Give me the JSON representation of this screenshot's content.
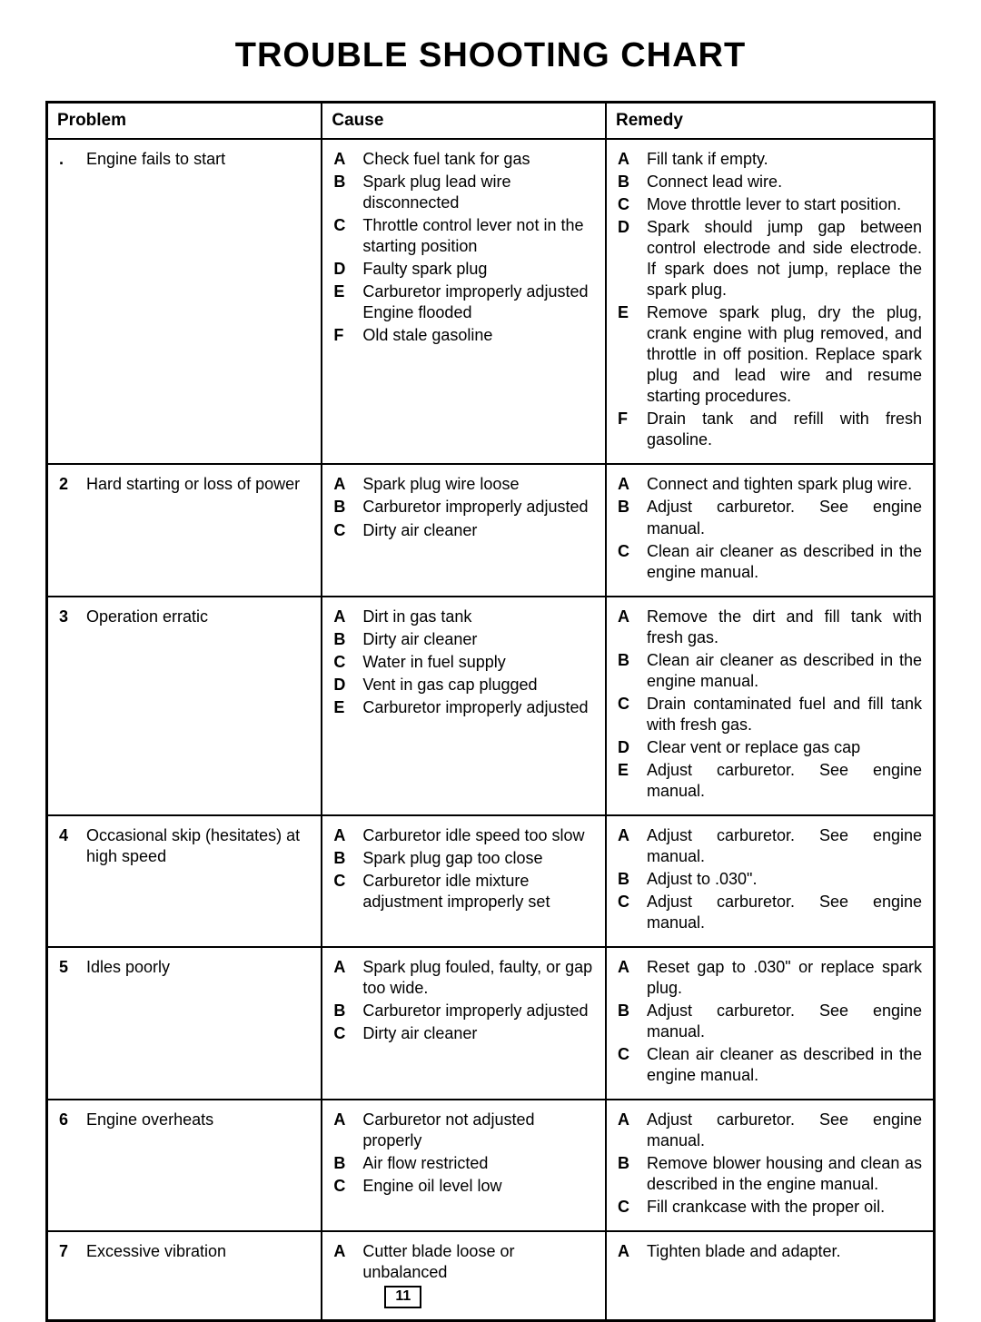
{
  "title": "TROUBLE SHOOTING CHART",
  "headers": {
    "problem": "Problem",
    "cause": "Cause",
    "remedy": "Remedy"
  },
  "page_number": "11",
  "rows": [
    {
      "num": ".",
      "problem": "Engine fails to start",
      "causes": [
        {
          "l": "A",
          "t": "Check fuel tank for gas"
        },
        {
          "l": "B",
          "t": "Spark plug lead wire disconnected"
        },
        {
          "l": "C",
          "t": "Throttle control lever not in the starting position"
        },
        {
          "l": "D",
          "t": "Faulty spark plug"
        },
        {
          "l": "E",
          "t": "Carburetor improperly adjusted\nEngine flooded"
        },
        {
          "l": "F",
          "t": "Old stale gasoline"
        }
      ],
      "remedies": [
        {
          "l": "A",
          "t": "Fill tank if empty."
        },
        {
          "l": "B",
          "t": "Connect lead wire."
        },
        {
          "l": "C",
          "t": "Move throttle lever to start position."
        },
        {
          "l": "D",
          "t": "Spark should jump gap between control electrode and side electrode. If spark does not jump, replace the spark plug."
        },
        {
          "l": "E",
          "t": "Remove spark plug, dry the plug, crank engine with plug removed, and throttle in off position. Replace spark plug and lead wire and resume starting procedures."
        },
        {
          "l": "F",
          "t": "Drain tank and refill with fresh gasoline."
        }
      ]
    },
    {
      "num": "2",
      "problem": "Hard starting or loss of power",
      "causes": [
        {
          "l": "A",
          "t": "Spark plug wire loose"
        },
        {
          "l": "B",
          "t": "Carburetor improperly adjusted"
        },
        {
          "l": "C",
          "t": "Dirty air cleaner"
        }
      ],
      "remedies": [
        {
          "l": "A",
          "t": "Connect and tighten spark plug wire."
        },
        {
          "l": "B",
          "t": "Adjust carburetor. See engine manual."
        },
        {
          "l": "C",
          "t": "Clean air cleaner as described in the engine manual."
        }
      ]
    },
    {
      "num": "3",
      "problem": "Operation erratic",
      "causes": [
        {
          "l": "A",
          "t": "Dirt in gas tank"
        },
        {
          "l": "B",
          "t": "Dirty air cleaner"
        },
        {
          "l": "C",
          "t": "Water in fuel supply"
        },
        {
          "l": "D",
          "t": "Vent in gas cap plugged"
        },
        {
          "l": "E",
          "t": "Carburetor improperly adjusted"
        }
      ],
      "remedies": [
        {
          "l": "A",
          "t": "Remove the dirt and fill tank with fresh gas."
        },
        {
          "l": "B",
          "t": "Clean air cleaner as described in the engine manual."
        },
        {
          "l": "C",
          "t": "Drain contaminated fuel and fill tank with fresh gas."
        },
        {
          "l": "D",
          "t": "Clear vent or replace gas cap"
        },
        {
          "l": "E",
          "t": "Adjust carburetor. See engine manual."
        }
      ]
    },
    {
      "num": "4",
      "problem": "Occasional skip (hesitates) at high speed",
      "causes": [
        {
          "l": "A",
          "t": "Carburetor idle speed too slow"
        },
        {
          "l": "B",
          "t": "Spark plug gap too close"
        },
        {
          "l": "C",
          "t": "Carburetor idle mixture adjustment improperly set"
        }
      ],
      "remedies": [
        {
          "l": "A",
          "t": "Adjust carburetor. See engine manual."
        },
        {
          "l": "B",
          "t": "Adjust to .030\"."
        },
        {
          "l": "C",
          "t": "Adjust carburetor. See engine manual."
        }
      ]
    },
    {
      "num": "5",
      "problem": "Idles poorly",
      "causes": [
        {
          "l": "A",
          "t": "Spark plug fouled, faulty, or gap too wide."
        },
        {
          "l": "B",
          "t": "Carburetor improperly adjusted"
        },
        {
          "l": "C",
          "t": "Dirty air cleaner"
        }
      ],
      "remedies": [
        {
          "l": "A",
          "t": "Reset gap to .030\" or replace spark plug."
        },
        {
          "l": "B",
          "t": "Adjust carburetor. See engine manual."
        },
        {
          "l": "C",
          "t": "Clean air cleaner as described in the engine manual."
        }
      ]
    },
    {
      "num": "6",
      "problem": "Engine overheats",
      "causes": [
        {
          "l": "A",
          "t": "Carburetor not adjusted properly"
        },
        {
          "l": "B",
          "t": "Air flow restricted"
        },
        {
          "l": "C",
          "t": "Engine oil level low"
        }
      ],
      "remedies": [
        {
          "l": "A",
          "t": "Adjust carburetor. See engine manual."
        },
        {
          "l": "B",
          "t": "Remove blower housing and clean as described in the engine manual."
        },
        {
          "l": "C",
          "t": "Fill crankcase with the proper oil."
        }
      ]
    },
    {
      "num": "7",
      "problem": "Excessive vibration",
      "causes": [
        {
          "l": "A",
          "t": "Cutter blade loose or unbalanced"
        }
      ],
      "remedies": [
        {
          "l": "A",
          "t": "Tighten blade and adapter."
        }
      ],
      "show_page_num": true
    }
  ]
}
